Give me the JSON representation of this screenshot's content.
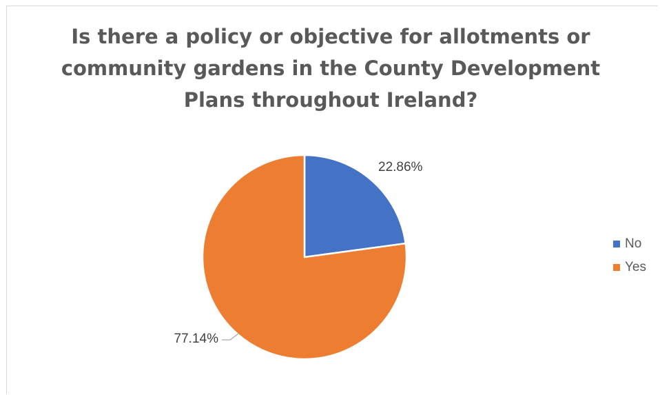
{
  "chart_data": {
    "type": "pie",
    "title_lines": [
      "Is there a policy or objective for allotments or",
      "community gardens in the County Development",
      "Plans throughout Ireland?"
    ],
    "categories": [
      "No",
      "Yes"
    ],
    "values": [
      22.86,
      77.14
    ],
    "data_labels": [
      "22.86%",
      "77.14%"
    ],
    "colors": [
      "#4472C4",
      "#ED7D31"
    ],
    "legend_position": "right"
  }
}
